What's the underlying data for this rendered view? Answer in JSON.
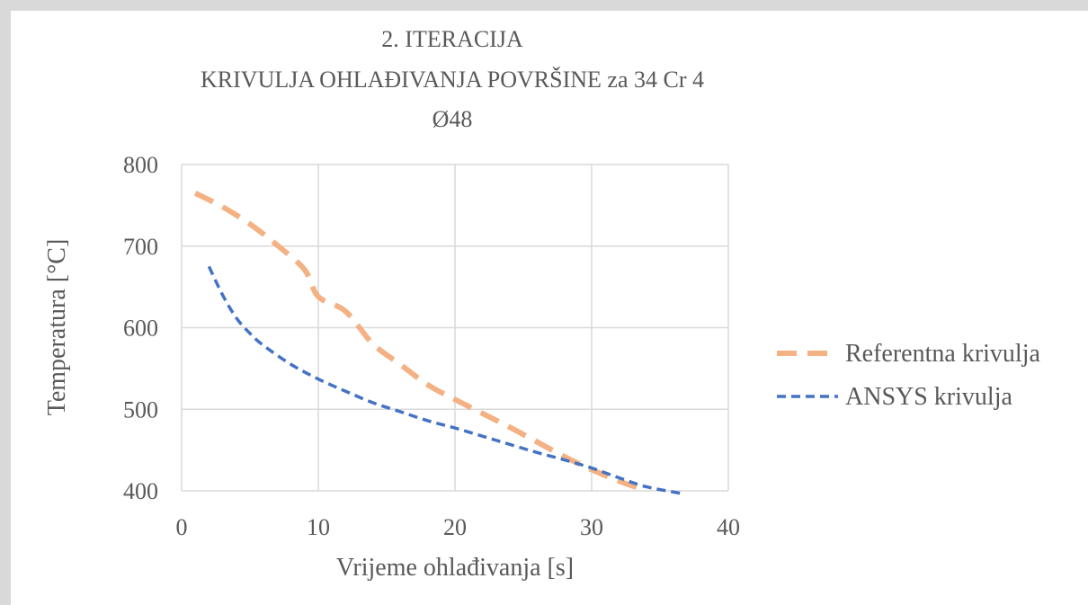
{
  "chart_data": {
    "type": "line",
    "title": [
      "2. ITERACIJA",
      "KRIVULJA OHLAĐIVANJA POVRŠINE za 34 Cr 4",
      "Ø48"
    ],
    "xlabel": "Vrijeme ohlađivanja [s]",
    "ylabel": "Temperatura [°C]",
    "xlim": [
      0,
      40
    ],
    "ylim": [
      400,
      800
    ],
    "xticks": [
      0,
      10,
      20,
      30,
      40
    ],
    "yticks": [
      400,
      500,
      600,
      700,
      800
    ],
    "grid": true,
    "legend_position": "right",
    "series": [
      {
        "name": "Referentna krivulja",
        "color": "#f4b183",
        "dash": "long-dash",
        "x": [
          1,
          3,
          5,
          7,
          9,
          10,
          12,
          14,
          16,
          18,
          20,
          22,
          24,
          26,
          28,
          30,
          32,
          34
        ],
        "y": [
          765,
          748,
          727,
          701,
          671,
          638,
          620,
          580,
          555,
          530,
          512,
          495,
          478,
          460,
          442,
          426,
          412,
          400
        ]
      },
      {
        "name": "ANSYS krivulja",
        "color": "#4472c4",
        "dash": "short-dash",
        "x": [
          2,
          3,
          4,
          5,
          6,
          8,
          10,
          12,
          14,
          16,
          18,
          20,
          22,
          24,
          26,
          28,
          30,
          32,
          34,
          36.5
        ],
        "y": [
          675,
          640,
          612,
          593,
          578,
          555,
          537,
          522,
          508,
          497,
          486,
          477,
          467,
          457,
          447,
          438,
          428,
          416,
          405,
          397
        ]
      }
    ]
  }
}
